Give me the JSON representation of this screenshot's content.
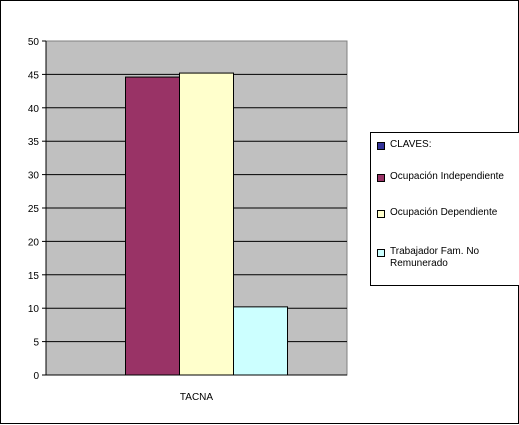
{
  "chart_data": {
    "type": "bar",
    "categories": [
      "TACNA"
    ],
    "series": [
      {
        "name": "CLAVES:",
        "values": [
          null
        ],
        "color": "#333399"
      },
      {
        "name": "Ocupación Independiente",
        "values": [
          44.6
        ],
        "color": "#993366"
      },
      {
        "name": "Ocupación Dependiente",
        "values": [
          45.2
        ],
        "color": "#FFFFCC"
      },
      {
        "name": "Trabajador Fam. No Remunerado",
        "values": [
          10.2
        ],
        "color": "#CCFFFF"
      }
    ],
    "ylim": [
      0,
      50
    ],
    "yticks": [
      "0",
      "5",
      "10",
      "15",
      "20",
      "25",
      "30",
      "35",
      "40",
      "45",
      "50"
    ],
    "grid": true,
    "plot_background": "#C0C0C0",
    "legend_position": "right"
  }
}
